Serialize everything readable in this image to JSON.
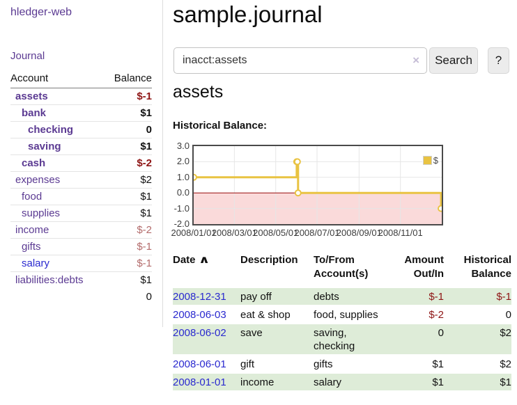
{
  "app": {
    "title": "hledger-web",
    "nav_journal": "Journal"
  },
  "colors": {
    "purple": "#5b3a92",
    "blue": "#2a29cf",
    "date_link": "#2a29cf",
    "text": "#111111",
    "negative_strong": "#8e1515",
    "negative_muted": "#b36b6b",
    "row_green": "#deecd8",
    "gold": "#e9c342",
    "chart_negative_fill": "#fadada",
    "zero_line": "#9c0a0a",
    "grid": "#e6e6e6",
    "chart_border": "#4a4a4a"
  },
  "sidebar": {
    "header": {
      "account": "Account",
      "balance": "Balance"
    },
    "accounts": [
      {
        "label": "assets",
        "amount": "$-1",
        "level": 1,
        "bold": true,
        "label_color": "purple",
        "amount_color": "negative-strong"
      },
      {
        "label": "bank",
        "amount": "$1",
        "level": 2,
        "bold": true,
        "label_color": "purple",
        "amount_color": "normal"
      },
      {
        "label": "checking",
        "amount": "0",
        "level": 3,
        "bold": true,
        "label_color": "purple",
        "amount_color": "normal"
      },
      {
        "label": "saving",
        "amount": "$1",
        "level": 3,
        "bold": true,
        "label_color": "purple",
        "amount_color": "normal"
      },
      {
        "label": "cash",
        "amount": "$-2",
        "level": 2,
        "bold": true,
        "label_color": "purple",
        "amount_color": "negative-strong"
      },
      {
        "label": "expenses",
        "amount": "$2",
        "level": 1,
        "bold": false,
        "label_color": "purple",
        "amount_color": "normal"
      },
      {
        "label": "food",
        "amount": "$1",
        "level": 2,
        "bold": false,
        "label_color": "purple",
        "amount_color": "normal"
      },
      {
        "label": "supplies",
        "amount": "$1",
        "level": 2,
        "bold": false,
        "label_color": "purple",
        "amount_color": "normal"
      },
      {
        "label": "income",
        "amount": "$-2",
        "level": 1,
        "bold": false,
        "label_color": "purple",
        "amount_color": "negative-muted"
      },
      {
        "label": "gifts",
        "amount": "$-1",
        "level": 2,
        "bold": false,
        "label_color": "purple",
        "amount_color": "negative-muted"
      },
      {
        "label": "salary",
        "amount": "$-1",
        "level": 2,
        "bold": false,
        "label_color": "blue",
        "amount_color": "negative-muted"
      },
      {
        "label": "liabilities:debts",
        "amount": "$1",
        "level": 1,
        "bold": false,
        "label_color": "purple",
        "amount_color": "normal"
      }
    ],
    "total": "0"
  },
  "main": {
    "title": "sample.journal",
    "search": {
      "value": "inacct:assets",
      "clear_icon": "×",
      "button_label": "Search",
      "help_label": "?"
    },
    "account_heading": "assets"
  },
  "chart_data": {
    "type": "line",
    "title": "Historical Balance:",
    "step": true,
    "ylim": [
      -2,
      3
    ],
    "yticks": [
      {
        "label": "3.0",
        "value": 3
      },
      {
        "label": "2.0",
        "value": 2
      },
      {
        "label": "1.0",
        "value": 1
      },
      {
        "label": "0.0",
        "value": 0
      },
      {
        "label": "-1.0",
        "value": -1
      },
      {
        "label": "-2.0",
        "value": -2
      }
    ],
    "xticks": [
      {
        "label": "2008/01/01",
        "day": 0
      },
      {
        "label": "2008/03/01",
        "day": 60
      },
      {
        "label": "2008/05/01",
        "day": 121
      },
      {
        "label": "2008/07/01",
        "day": 182
      },
      {
        "label": "2008/09/01",
        "day": 244
      },
      {
        "label": "2008/11/01",
        "day": 305
      }
    ],
    "x_max_day": 366,
    "grid": true,
    "negative_fill": "#fadada",
    "zero_line_color": "#9c0a0a",
    "legend": {
      "label": "$",
      "position": "top-right",
      "swatch_color": "#e9c342"
    },
    "series": [
      {
        "name": "$",
        "color": "#e9c342",
        "points": [
          {
            "date": "2008-01-01",
            "day": 0,
            "value": 1
          },
          {
            "date": "2008-06-01",
            "day": 152,
            "value": 2
          },
          {
            "date": "2008-06-02",
            "day": 153,
            "value": 2
          },
          {
            "date": "2008-06-03",
            "day": 154,
            "value": 0
          },
          {
            "date": "2008-12-31",
            "day": 365,
            "value": -1
          }
        ]
      }
    ]
  },
  "table": {
    "headers": {
      "date": "Date",
      "sort_icon": "∧",
      "description": "Description",
      "accounts": "To/From Account(s)",
      "amount": "Amount Out/In",
      "balance": "Historical Balance"
    },
    "rows": [
      {
        "date": "2008-12-31",
        "description": "pay off",
        "accounts": "debts",
        "amount": "$-1",
        "balance": "$-1",
        "amount_neg": true,
        "balance_neg": true,
        "shaded": true
      },
      {
        "date": "2008-06-03",
        "description": "eat & shop",
        "accounts": "food, supplies",
        "amount": "$-2",
        "balance": "0",
        "amount_neg": true,
        "balance_neg": false,
        "shaded": false
      },
      {
        "date": "2008-06-02",
        "description": "save",
        "accounts": "saving, checking",
        "amount": "0",
        "balance": "$2",
        "amount_neg": false,
        "balance_neg": false,
        "shaded": true
      },
      {
        "date": "2008-06-01",
        "description": "gift",
        "accounts": "gifts",
        "amount": "$1",
        "balance": "$2",
        "amount_neg": false,
        "balance_neg": false,
        "shaded": false
      },
      {
        "date": "2008-01-01",
        "description": "income",
        "accounts": "salary",
        "amount": "$1",
        "balance": "$1",
        "amount_neg": false,
        "balance_neg": false,
        "shaded": true
      }
    ]
  }
}
